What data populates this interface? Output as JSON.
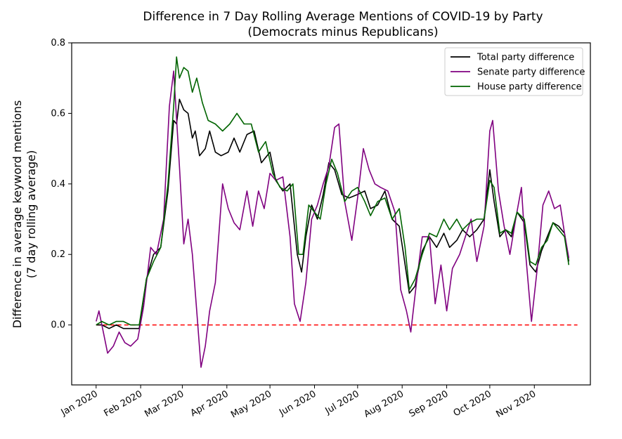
{
  "chart_data": {
    "type": "line",
    "title": "Difference in 7 Day Rolling Average Mentions of COVID-19 by Party",
    "subtitle": "(Democrats minus Republicans)",
    "ylabel": "Difference in average keyword mentions",
    "ylabel2": "(7 day rolling average)",
    "xlabel": "",
    "x_range": [
      "2019-12-15",
      "2020-12-10"
    ],
    "ylim": [
      -0.17,
      0.8
    ],
    "yticks": [
      0.0,
      0.2,
      0.4,
      0.6,
      0.8
    ],
    "ytick_labels": [
      "0.0",
      "0.2",
      "0.4",
      "0.6",
      "0.8"
    ],
    "xticks": [
      "2020-01-01",
      "2020-02-01",
      "2020-03-01",
      "2020-04-01",
      "2020-05-01",
      "2020-06-01",
      "2020-07-01",
      "2020-08-01",
      "2020-09-01",
      "2020-10-01",
      "2020-11-01"
    ],
    "xtick_labels": [
      "Jan 2020",
      "Feb 2020",
      "Mar 2020",
      "Apr 2020",
      "May 2020",
      "Jun 2020",
      "Jul 2020",
      "Aug 2020",
      "Sep 2020",
      "Oct 2020",
      "Nov 2020"
    ],
    "grid": false,
    "legend_position": "top-right",
    "reference_line": {
      "y": 0,
      "color": "#ff0000",
      "style": "dashed"
    },
    "series": [
      {
        "name": "Total party difference",
        "color": "#000000",
        "points": [
          [
            "2020-01-01",
            0.0
          ],
          [
            "2020-01-05",
            0.0
          ],
          [
            "2020-01-10",
            -0.01
          ],
          [
            "2020-01-15",
            0.0
          ],
          [
            "2020-01-20",
            -0.01
          ],
          [
            "2020-01-25",
            -0.01
          ],
          [
            "2020-01-31",
            -0.01
          ],
          [
            "2020-02-05",
            0.13
          ],
          [
            "2020-02-10",
            0.2
          ],
          [
            "2020-02-15",
            0.22
          ],
          [
            "2020-02-20",
            0.38
          ],
          [
            "2020-02-24",
            0.58
          ],
          [
            "2020-02-26",
            0.57
          ],
          [
            "2020-02-28",
            0.64
          ],
          [
            "2020-03-02",
            0.61
          ],
          [
            "2020-03-05",
            0.6
          ],
          [
            "2020-03-08",
            0.53
          ],
          [
            "2020-03-10",
            0.55
          ],
          [
            "2020-03-13",
            0.48
          ],
          [
            "2020-03-17",
            0.5
          ],
          [
            "2020-03-20",
            0.55
          ],
          [
            "2020-03-24",
            0.49
          ],
          [
            "2020-03-28",
            0.48
          ],
          [
            "2020-04-02",
            0.49
          ],
          [
            "2020-04-06",
            0.53
          ],
          [
            "2020-04-10",
            0.49
          ],
          [
            "2020-04-15",
            0.54
          ],
          [
            "2020-04-20",
            0.55
          ],
          [
            "2020-04-25",
            0.46
          ],
          [
            "2020-05-01",
            0.49
          ],
          [
            "2020-05-05",
            0.41
          ],
          [
            "2020-05-10",
            0.38
          ],
          [
            "2020-05-15",
            0.4
          ],
          [
            "2020-05-20",
            0.2
          ],
          [
            "2020-05-23",
            0.15
          ],
          [
            "2020-05-26",
            0.25
          ],
          [
            "2020-05-30",
            0.34
          ],
          [
            "2020-06-03",
            0.3
          ],
          [
            "2020-06-07",
            0.37
          ],
          [
            "2020-06-11",
            0.46
          ],
          [
            "2020-06-15",
            0.44
          ],
          [
            "2020-06-20",
            0.37
          ],
          [
            "2020-06-25",
            0.36
          ],
          [
            "2020-07-01",
            0.37
          ],
          [
            "2020-07-06",
            0.38
          ],
          [
            "2020-07-10",
            0.33
          ],
          [
            "2020-07-15",
            0.34
          ],
          [
            "2020-07-20",
            0.38
          ],
          [
            "2020-07-25",
            0.3
          ],
          [
            "2020-07-30",
            0.28
          ],
          [
            "2020-08-02",
            0.2
          ],
          [
            "2020-08-06",
            0.09
          ],
          [
            "2020-08-10",
            0.11
          ],
          [
            "2020-08-15",
            0.21
          ],
          [
            "2020-08-20",
            0.25
          ],
          [
            "2020-08-25",
            0.22
          ],
          [
            "2020-08-30",
            0.26
          ],
          [
            "2020-09-03",
            0.22
          ],
          [
            "2020-09-08",
            0.24
          ],
          [
            "2020-09-12",
            0.27
          ],
          [
            "2020-09-17",
            0.25
          ],
          [
            "2020-09-22",
            0.27
          ],
          [
            "2020-09-27",
            0.3
          ],
          [
            "2020-10-01",
            0.44
          ],
          [
            "2020-10-04",
            0.35
          ],
          [
            "2020-10-08",
            0.25
          ],
          [
            "2020-10-12",
            0.27
          ],
          [
            "2020-10-16",
            0.25
          ],
          [
            "2020-10-20",
            0.32
          ],
          [
            "2020-10-25",
            0.29
          ],
          [
            "2020-10-29",
            0.17
          ],
          [
            "2020-11-02",
            0.15
          ],
          [
            "2020-11-06",
            0.21
          ],
          [
            "2020-11-10",
            0.25
          ],
          [
            "2020-11-14",
            0.29
          ],
          [
            "2020-11-18",
            0.28
          ],
          [
            "2020-11-22",
            0.26
          ],
          [
            "2020-11-25",
            0.18
          ]
        ]
      },
      {
        "name": "Senate party difference",
        "color": "#800080",
        "points": [
          [
            "2020-01-01",
            0.01
          ],
          [
            "2020-01-03",
            0.04
          ],
          [
            "2020-01-06",
            -0.02
          ],
          [
            "2020-01-09",
            -0.08
          ],
          [
            "2020-01-13",
            -0.06
          ],
          [
            "2020-01-17",
            -0.02
          ],
          [
            "2020-01-21",
            -0.05
          ],
          [
            "2020-01-25",
            -0.06
          ],
          [
            "2020-01-30",
            -0.04
          ],
          [
            "2020-02-03",
            0.05
          ],
          [
            "2020-02-08",
            0.22
          ],
          [
            "2020-02-12",
            0.2
          ],
          [
            "2020-02-17",
            0.3
          ],
          [
            "2020-02-21",
            0.62
          ],
          [
            "2020-02-24",
            0.72
          ],
          [
            "2020-02-28",
            0.45
          ],
          [
            "2020-03-02",
            0.23
          ],
          [
            "2020-03-05",
            0.3
          ],
          [
            "2020-03-08",
            0.2
          ],
          [
            "2020-03-11",
            0.04
          ],
          [
            "2020-03-14",
            -0.12
          ],
          [
            "2020-03-17",
            -0.06
          ],
          [
            "2020-03-20",
            0.04
          ],
          [
            "2020-03-24",
            0.12
          ],
          [
            "2020-03-29",
            0.4
          ],
          [
            "2020-04-02",
            0.33
          ],
          [
            "2020-04-06",
            0.29
          ],
          [
            "2020-04-10",
            0.27
          ],
          [
            "2020-04-15",
            0.38
          ],
          [
            "2020-04-19",
            0.28
          ],
          [
            "2020-04-23",
            0.38
          ],
          [
            "2020-04-27",
            0.33
          ],
          [
            "2020-05-01",
            0.43
          ],
          [
            "2020-05-05",
            0.41
          ],
          [
            "2020-05-10",
            0.42
          ],
          [
            "2020-05-15",
            0.25
          ],
          [
            "2020-05-18",
            0.06
          ],
          [
            "2020-05-22",
            0.01
          ],
          [
            "2020-05-26",
            0.12
          ],
          [
            "2020-05-30",
            0.3
          ],
          [
            "2020-06-03",
            0.34
          ],
          [
            "2020-06-07",
            0.4
          ],
          [
            "2020-06-11",
            0.45
          ],
          [
            "2020-06-15",
            0.56
          ],
          [
            "2020-06-18",
            0.57
          ],
          [
            "2020-06-22",
            0.35
          ],
          [
            "2020-06-27",
            0.24
          ],
          [
            "2020-07-01",
            0.36
          ],
          [
            "2020-07-05",
            0.5
          ],
          [
            "2020-07-09",
            0.44
          ],
          [
            "2020-07-13",
            0.4
          ],
          [
            "2020-07-17",
            0.39
          ],
          [
            "2020-07-22",
            0.38
          ],
          [
            "2020-07-27",
            0.32
          ],
          [
            "2020-07-31",
            0.1
          ],
          [
            "2020-08-04",
            0.04
          ],
          [
            "2020-08-07",
            -0.02
          ],
          [
            "2020-08-11",
            0.12
          ],
          [
            "2020-08-15",
            0.25
          ],
          [
            "2020-08-20",
            0.25
          ],
          [
            "2020-08-24",
            0.06
          ],
          [
            "2020-08-28",
            0.17
          ],
          [
            "2020-09-01",
            0.04
          ],
          [
            "2020-09-05",
            0.16
          ],
          [
            "2020-09-10",
            0.2
          ],
          [
            "2020-09-14",
            0.25
          ],
          [
            "2020-09-18",
            0.3
          ],
          [
            "2020-09-22",
            0.18
          ],
          [
            "2020-09-27",
            0.28
          ],
          [
            "2020-10-01",
            0.55
          ],
          [
            "2020-10-03",
            0.58
          ],
          [
            "2020-10-07",
            0.38
          ],
          [
            "2020-10-11",
            0.28
          ],
          [
            "2020-10-15",
            0.2
          ],
          [
            "2020-10-19",
            0.3
          ],
          [
            "2020-10-23",
            0.39
          ],
          [
            "2020-10-26",
            0.2
          ],
          [
            "2020-10-30",
            0.01
          ],
          [
            "2020-11-03",
            0.16
          ],
          [
            "2020-11-07",
            0.34
          ],
          [
            "2020-11-11",
            0.38
          ],
          [
            "2020-11-15",
            0.33
          ],
          [
            "2020-11-19",
            0.34
          ],
          [
            "2020-11-22",
            0.26
          ],
          [
            "2020-11-25",
            0.19
          ]
        ]
      },
      {
        "name": "House party difference",
        "color": "#006400",
        "points": [
          [
            "2020-01-01",
            0.0
          ],
          [
            "2020-01-05",
            0.01
          ],
          [
            "2020-01-10",
            0.0
          ],
          [
            "2020-01-15",
            0.01
          ],
          [
            "2020-01-20",
            0.01
          ],
          [
            "2020-01-25",
            0.0
          ],
          [
            "2020-01-31",
            0.0
          ],
          [
            "2020-02-05",
            0.13
          ],
          [
            "2020-02-10",
            0.18
          ],
          [
            "2020-02-15",
            0.22
          ],
          [
            "2020-02-20",
            0.4
          ],
          [
            "2020-02-24",
            0.62
          ],
          [
            "2020-02-26",
            0.76
          ],
          [
            "2020-02-28",
            0.7
          ],
          [
            "2020-03-02",
            0.73
          ],
          [
            "2020-03-05",
            0.72
          ],
          [
            "2020-03-08",
            0.66
          ],
          [
            "2020-03-11",
            0.7
          ],
          [
            "2020-03-15",
            0.63
          ],
          [
            "2020-03-19",
            0.58
          ],
          [
            "2020-03-24",
            0.57
          ],
          [
            "2020-03-29",
            0.55
          ],
          [
            "2020-04-03",
            0.57
          ],
          [
            "2020-04-08",
            0.6
          ],
          [
            "2020-04-13",
            0.57
          ],
          [
            "2020-04-18",
            0.57
          ],
          [
            "2020-04-23",
            0.49
          ],
          [
            "2020-04-28",
            0.52
          ],
          [
            "2020-05-03",
            0.43
          ],
          [
            "2020-05-08",
            0.39
          ],
          [
            "2020-05-13",
            0.38
          ],
          [
            "2020-05-17",
            0.4
          ],
          [
            "2020-05-21",
            0.2
          ],
          [
            "2020-05-24",
            0.2
          ],
          [
            "2020-05-28",
            0.34
          ],
          [
            "2020-06-01",
            0.32
          ],
          [
            "2020-06-05",
            0.3
          ],
          [
            "2020-06-09",
            0.4
          ],
          [
            "2020-06-13",
            0.47
          ],
          [
            "2020-06-17",
            0.43
          ],
          [
            "2020-06-22",
            0.35
          ],
          [
            "2020-06-27",
            0.38
          ],
          [
            "2020-07-01",
            0.39
          ],
          [
            "2020-07-06",
            0.35
          ],
          [
            "2020-07-10",
            0.31
          ],
          [
            "2020-07-15",
            0.35
          ],
          [
            "2020-07-20",
            0.36
          ],
          [
            "2020-07-25",
            0.3
          ],
          [
            "2020-07-30",
            0.33
          ],
          [
            "2020-08-03",
            0.22
          ],
          [
            "2020-08-06",
            0.1
          ],
          [
            "2020-08-10",
            0.13
          ],
          [
            "2020-08-15",
            0.2
          ],
          [
            "2020-08-20",
            0.26
          ],
          [
            "2020-08-25",
            0.25
          ],
          [
            "2020-08-30",
            0.3
          ],
          [
            "2020-09-03",
            0.27
          ],
          [
            "2020-09-08",
            0.3
          ],
          [
            "2020-09-12",
            0.27
          ],
          [
            "2020-09-17",
            0.29
          ],
          [
            "2020-09-22",
            0.3
          ],
          [
            "2020-09-27",
            0.3
          ],
          [
            "2020-10-01",
            0.41
          ],
          [
            "2020-10-04",
            0.39
          ],
          [
            "2020-10-08",
            0.26
          ],
          [
            "2020-10-12",
            0.27
          ],
          [
            "2020-10-16",
            0.26
          ],
          [
            "2020-10-20",
            0.32
          ],
          [
            "2020-10-25",
            0.3
          ],
          [
            "2020-10-29",
            0.18
          ],
          [
            "2020-11-02",
            0.17
          ],
          [
            "2020-11-06",
            0.22
          ],
          [
            "2020-11-10",
            0.24
          ],
          [
            "2020-11-14",
            0.29
          ],
          [
            "2020-11-18",
            0.27
          ],
          [
            "2020-11-22",
            0.25
          ],
          [
            "2020-11-25",
            0.17
          ]
        ]
      }
    ]
  }
}
